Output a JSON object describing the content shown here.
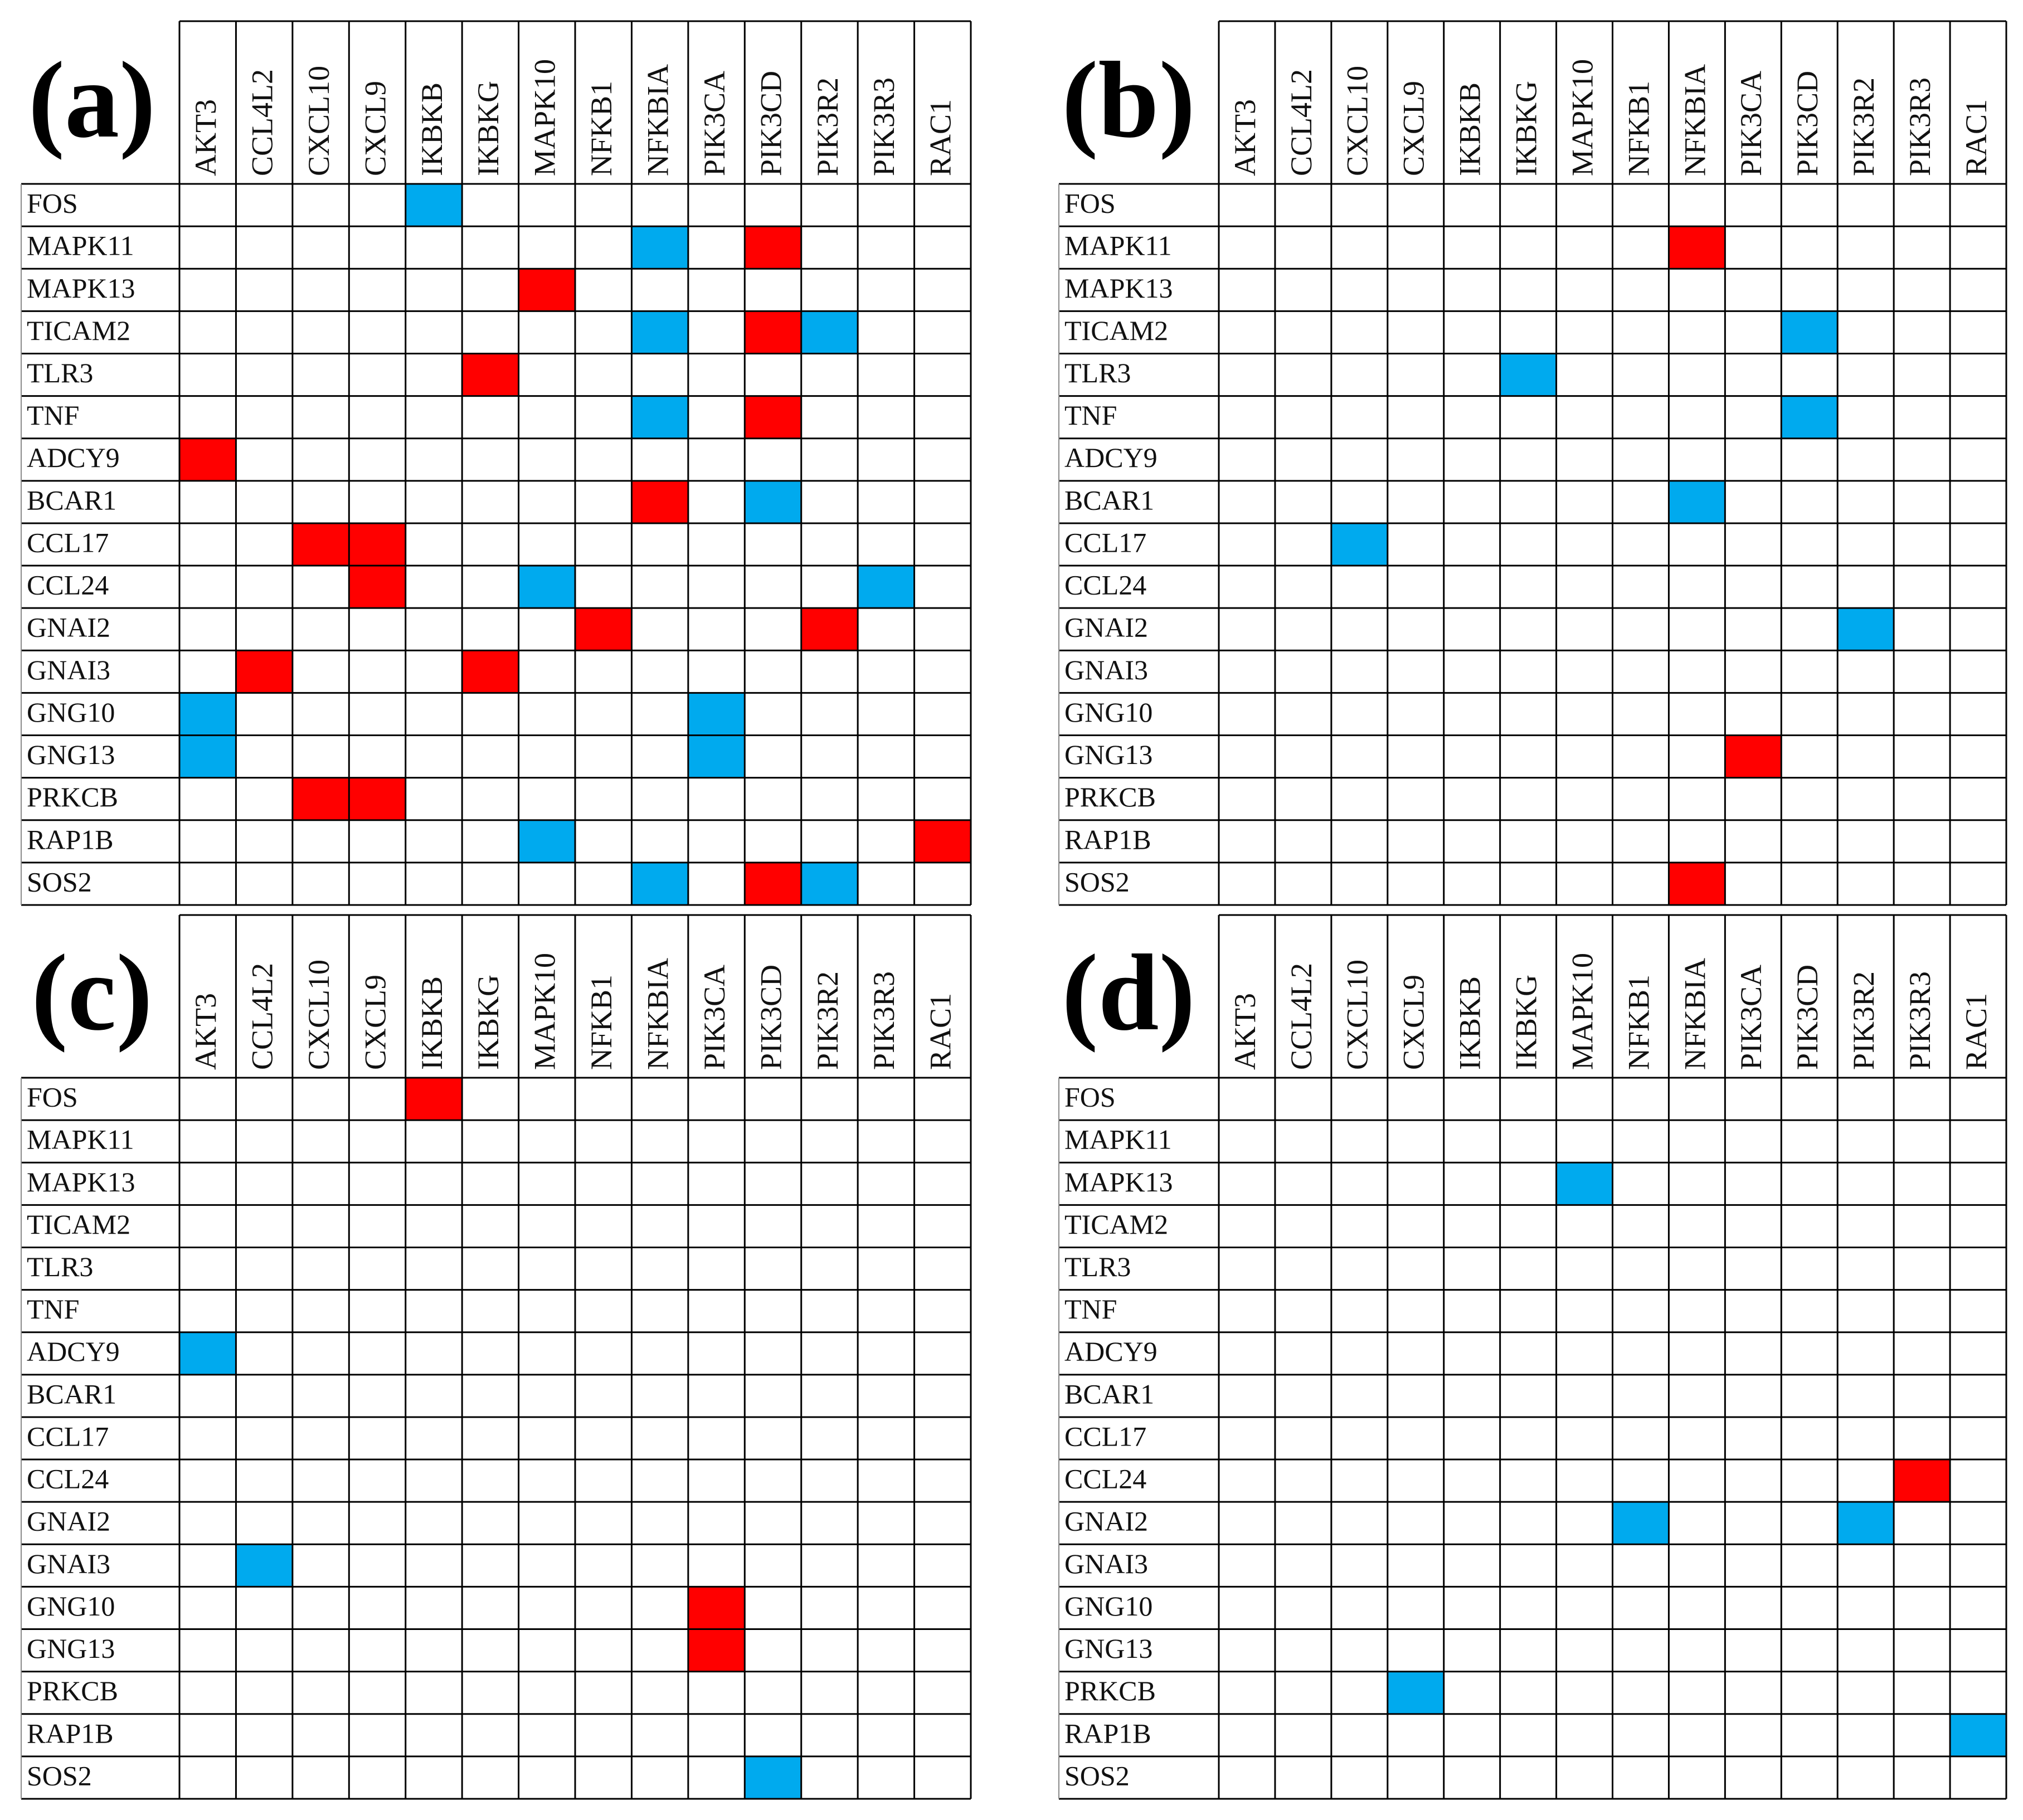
{
  "colors": {
    "positive": "#ff0000",
    "negative": "#00aaee",
    "grid": "#000000"
  },
  "chart_data": [
    {
      "type": "heatmap",
      "panel_label": "(a)",
      "columns": [
        "AKT3",
        "CCL4L2",
        "CXCL10",
        "CXCL9",
        "IKBKB",
        "IKBKG",
        "MAPK10",
        "NFKB1",
        "NFKBIA",
        "PIK3CA",
        "PIK3CD",
        "PIK3R2",
        "PIK3R3",
        "RAC1"
      ],
      "rows": [
        "FOS",
        "MAPK11",
        "MAPK13",
        "TICAM2",
        "TLR3",
        "TNF",
        "ADCY9",
        "BCAR1",
        "CCL17",
        "CCL24",
        "GNAI2",
        "GNAI3",
        "GNG10",
        "GNG13",
        "PRKCB",
        "RAP1B",
        "SOS2"
      ],
      "cells": [
        {
          "row": "FOS",
          "col": "IKBKB",
          "color": "blue"
        },
        {
          "row": "MAPK11",
          "col": "NFKBIA",
          "color": "blue"
        },
        {
          "row": "MAPK11",
          "col": "PIK3CD",
          "color": "red"
        },
        {
          "row": "MAPK13",
          "col": "MAPK10",
          "color": "red"
        },
        {
          "row": "TICAM2",
          "col": "NFKBIA",
          "color": "blue"
        },
        {
          "row": "TICAM2",
          "col": "PIK3CD",
          "color": "red"
        },
        {
          "row": "TICAM2",
          "col": "PIK3R2",
          "color": "blue"
        },
        {
          "row": "TLR3",
          "col": "IKBKG",
          "color": "red"
        },
        {
          "row": "TNF",
          "col": "NFKBIA",
          "color": "blue"
        },
        {
          "row": "TNF",
          "col": "PIK3CD",
          "color": "red"
        },
        {
          "row": "ADCY9",
          "col": "AKT3",
          "color": "red"
        },
        {
          "row": "BCAR1",
          "col": "NFKBIA",
          "color": "red"
        },
        {
          "row": "BCAR1",
          "col": "PIK3CD",
          "color": "blue"
        },
        {
          "row": "CCL17",
          "col": "CXCL10",
          "color": "red"
        },
        {
          "row": "CCL17",
          "col": "CXCL9",
          "color": "red"
        },
        {
          "row": "CCL24",
          "col": "CXCL9",
          "color": "red"
        },
        {
          "row": "CCL24",
          "col": "MAPK10",
          "color": "blue"
        },
        {
          "row": "CCL24",
          "col": "PIK3R3",
          "color": "blue"
        },
        {
          "row": "GNAI2",
          "col": "NFKB1",
          "color": "red"
        },
        {
          "row": "GNAI2",
          "col": "PIK3R2",
          "color": "red"
        },
        {
          "row": "GNAI3",
          "col": "CCL4L2",
          "color": "red"
        },
        {
          "row": "GNAI3",
          "col": "IKBKG",
          "color": "red"
        },
        {
          "row": "GNG10",
          "col": "AKT3",
          "color": "blue"
        },
        {
          "row": "GNG10",
          "col": "PIK3CA",
          "color": "blue"
        },
        {
          "row": "GNG13",
          "col": "AKT3",
          "color": "blue"
        },
        {
          "row": "GNG13",
          "col": "PIK3CA",
          "color": "blue"
        },
        {
          "row": "PRKCB",
          "col": "CXCL10",
          "color": "red"
        },
        {
          "row": "PRKCB",
          "col": "CXCL9",
          "color": "red"
        },
        {
          "row": "RAP1B",
          "col": "MAPK10",
          "color": "blue"
        },
        {
          "row": "RAP1B",
          "col": "RAC1",
          "color": "red"
        },
        {
          "row": "SOS2",
          "col": "NFKBIA",
          "color": "blue"
        },
        {
          "row": "SOS2",
          "col": "PIK3CD",
          "color": "red"
        },
        {
          "row": "SOS2",
          "col": "PIK3R2",
          "color": "blue"
        }
      ]
    },
    {
      "type": "heatmap",
      "panel_label": "(b)",
      "columns": [
        "AKT3",
        "CCL4L2",
        "CXCL10",
        "CXCL9",
        "IKBKB",
        "IKBKG",
        "MAPK10",
        "NFKB1",
        "NFKBIA",
        "PIK3CA",
        "PIK3CD",
        "PIK3R2",
        "PIK3R3",
        "RAC1"
      ],
      "rows": [
        "FOS",
        "MAPK11",
        "MAPK13",
        "TICAM2",
        "TLR3",
        "TNF",
        "ADCY9",
        "BCAR1",
        "CCL17",
        "CCL24",
        "GNAI2",
        "GNAI3",
        "GNG10",
        "GNG13",
        "PRKCB",
        "RAP1B",
        "SOS2"
      ],
      "cells": [
        {
          "row": "MAPK11",
          "col": "NFKBIA",
          "color": "red"
        },
        {
          "row": "TICAM2",
          "col": "PIK3CD",
          "color": "blue"
        },
        {
          "row": "TLR3",
          "col": "IKBKG",
          "color": "blue"
        },
        {
          "row": "TNF",
          "col": "PIK3CD",
          "color": "blue"
        },
        {
          "row": "BCAR1",
          "col": "NFKBIA",
          "color": "blue"
        },
        {
          "row": "CCL17",
          "col": "CXCL10",
          "color": "blue"
        },
        {
          "row": "GNAI2",
          "col": "PIK3R2",
          "color": "blue"
        },
        {
          "row": "GNG13",
          "col": "PIK3CA",
          "color": "red"
        },
        {
          "row": "SOS2",
          "col": "NFKBIA",
          "color": "red"
        }
      ]
    },
    {
      "type": "heatmap",
      "panel_label": "(c)",
      "columns": [
        "AKT3",
        "CCL4L2",
        "CXCL10",
        "CXCL9",
        "IKBKB",
        "IKBKG",
        "MAPK10",
        "NFKB1",
        "NFKBIA",
        "PIK3CA",
        "PIK3CD",
        "PIK3R2",
        "PIK3R3",
        "RAC1"
      ],
      "rows": [
        "FOS",
        "MAPK11",
        "MAPK13",
        "TICAM2",
        "TLR3",
        "TNF",
        "ADCY9",
        "BCAR1",
        "CCL17",
        "CCL24",
        "GNAI2",
        "GNAI3",
        "GNG10",
        "GNG13",
        "PRKCB",
        "RAP1B",
        "SOS2"
      ],
      "cells": [
        {
          "row": "FOS",
          "col": "IKBKB",
          "color": "red"
        },
        {
          "row": "ADCY9",
          "col": "AKT3",
          "color": "blue"
        },
        {
          "row": "GNAI3",
          "col": "CCL4L2",
          "color": "blue"
        },
        {
          "row": "GNG10",
          "col": "PIK3CA",
          "color": "red"
        },
        {
          "row": "GNG13",
          "col": "PIK3CA",
          "color": "red"
        },
        {
          "row": "SOS2",
          "col": "PIK3CD",
          "color": "blue"
        }
      ]
    },
    {
      "type": "heatmap",
      "panel_label": "(d)",
      "columns": [
        "AKT3",
        "CCL4L2",
        "CXCL10",
        "CXCL9",
        "IKBKB",
        "IKBKG",
        "MAPK10",
        "NFKB1",
        "NFKBIA",
        "PIK3CA",
        "PIK3CD",
        "PIK3R2",
        "PIK3R3",
        "RAC1"
      ],
      "rows": [
        "FOS",
        "MAPK11",
        "MAPK13",
        "TICAM2",
        "TLR3",
        "TNF",
        "ADCY9",
        "BCAR1",
        "CCL17",
        "CCL24",
        "GNAI2",
        "GNAI3",
        "GNG10",
        "GNG13",
        "PRKCB",
        "RAP1B",
        "SOS2"
      ],
      "cells": [
        {
          "row": "MAPK13",
          "col": "MAPK10",
          "color": "blue"
        },
        {
          "row": "CCL24",
          "col": "PIK3R3",
          "color": "red"
        },
        {
          "row": "GNAI2",
          "col": "NFKB1",
          "color": "blue"
        },
        {
          "row": "GNAI2",
          "col": "PIK3R2",
          "color": "blue"
        },
        {
          "row": "PRKCB",
          "col": "CXCL9",
          "color": "blue"
        },
        {
          "row": "RAP1B",
          "col": "RAC1",
          "color": "blue"
        }
      ]
    }
  ]
}
